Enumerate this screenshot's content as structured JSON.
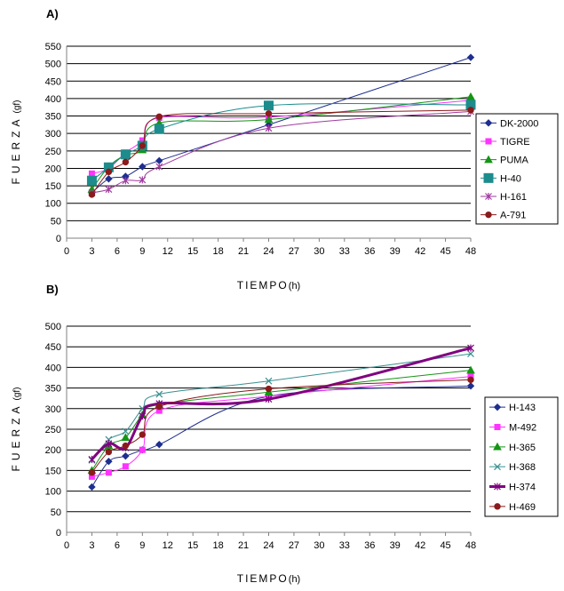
{
  "chart_data": [
    {
      "type": "line",
      "panel_label": "A)",
      "xlabel_main": "TIEMPO",
      "xlabel_unit": "(h)",
      "ylabel_main": "FUERZA",
      "ylabel_unit": "(gf)",
      "xlim": [
        0,
        48
      ],
      "ylim": [
        0,
        550
      ],
      "x_ticks": [
        0,
        3,
        6,
        9,
        12,
        15,
        18,
        21,
        24,
        27,
        30,
        33,
        36,
        39,
        42,
        45,
        48
      ],
      "y_ticks": [
        0,
        50,
        100,
        150,
        200,
        250,
        300,
        350,
        400,
        450,
        500,
        550
      ],
      "grid": "horizontal",
      "legend_position": "right",
      "x": [
        3,
        5,
        7,
        9,
        11,
        24,
        48
      ],
      "series": [
        {
          "name": "DK-2000",
          "marker": "diamond",
          "color": "#1f2f8f",
          "values": [
            130,
            170,
            177,
            205,
            222,
            325,
            518
          ]
        },
        {
          "name": "TIGRE",
          "marker": "square",
          "color": "#ff33ff",
          "values": [
            185,
            200,
            245,
            280,
            345,
            347,
            395
          ]
        },
        {
          "name": "PUMA",
          "marker": "triangle",
          "color": "#159415",
          "values": [
            140,
            205,
            238,
            253,
            330,
            340,
            405
          ]
        },
        {
          "name": "H-40",
          "marker": "bigsquare",
          "color": "#1c8c8c",
          "values": [
            165,
            203,
            240,
            265,
            313,
            380,
            382
          ]
        },
        {
          "name": "H-161",
          "marker": "star",
          "color": "#a03aa0",
          "values": [
            130,
            140,
            165,
            167,
            205,
            315,
            363
          ]
        },
        {
          "name": "A-791",
          "marker": "circle",
          "color": "#8b1a1a",
          "values": [
            125,
            190,
            218,
            265,
            348,
            357,
            367
          ]
        }
      ]
    },
    {
      "type": "line",
      "panel_label": "B)",
      "xlabel_main": "TIEMPO",
      "xlabel_unit": "(h)",
      "ylabel_main": "FUERZA",
      "ylabel_unit": "(gf)",
      "xlim": [
        0,
        48
      ],
      "ylim": [
        0,
        500
      ],
      "x_ticks": [
        0,
        3,
        6,
        9,
        12,
        15,
        18,
        21,
        24,
        27,
        30,
        33,
        36,
        39,
        42,
        45,
        48
      ],
      "y_ticks": [
        0,
        50,
        100,
        150,
        200,
        250,
        300,
        350,
        400,
        450,
        500
      ],
      "grid": "horizontal",
      "legend_position": "right",
      "x": [
        3,
        5,
        7,
        9,
        11,
        24,
        48
      ],
      "series": [
        {
          "name": "H-143",
          "marker": "diamond",
          "color": "#1f2f8f",
          "values": [
            110,
            172,
            185,
            200,
            213,
            330,
            355
          ]
        },
        {
          "name": "M-492",
          "marker": "square",
          "color": "#ff33ff",
          "values": [
            135,
            145,
            160,
            200,
            295,
            330,
            378
          ]
        },
        {
          "name": "H-365",
          "marker": "triangle",
          "color": "#159415",
          "values": [
            150,
            210,
            230,
            285,
            310,
            340,
            393
          ]
        },
        {
          "name": "H-368",
          "marker": "x",
          "color": "#3a8f8f",
          "values": [
            175,
            225,
            245,
            300,
            335,
            367,
            433
          ]
        },
        {
          "name": "H-374",
          "marker": "star",
          "color": "#800080",
          "thick": true,
          "values": [
            177,
            215,
            205,
            282,
            312,
            323,
            447
          ]
        },
        {
          "name": "H-469",
          "marker": "circle",
          "color": "#8b1a1a",
          "values": [
            145,
            195,
            210,
            237,
            305,
            348,
            370
          ]
        }
      ]
    }
  ]
}
